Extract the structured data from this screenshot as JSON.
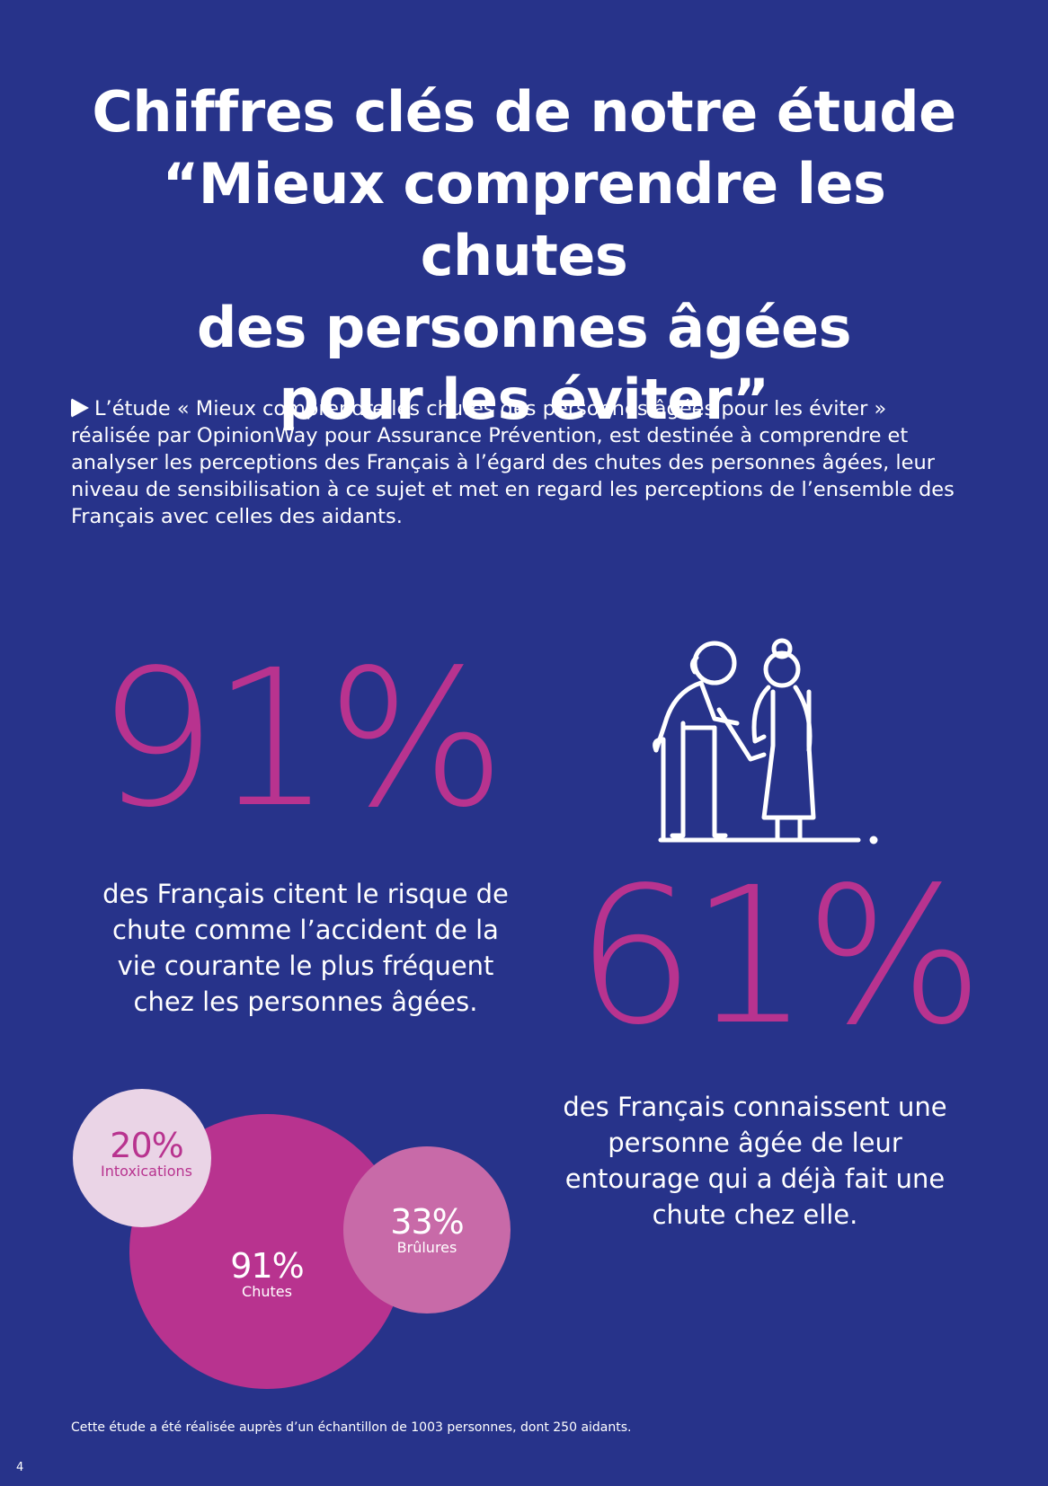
{
  "title": {
    "line1": "Chiffres clés de notre étude",
    "line2": "“Mieux comprendre les chutes",
    "line3": "des personnes âgées",
    "line4": "pour les éviter”"
  },
  "intro": {
    "icon": "play-arrow-icon",
    "text": "L’étude « Mieux comprendre les chutes des personnes âgées pour les éviter » réalisée par OpinionWay pour Assurance Prévention, est destinée à comprendre et analyser les perceptions des Français à l’égard des chutes des personnes âgées, leur niveau de sensibilisation à ce sujet et met en regard les perceptions de l’ensemble des Français avec celles des aidants."
  },
  "stat1": {
    "value": "91%",
    "text": "des Français citent le risque de chute comme l’accident de la vie courante le plus fréquent chez les personnes âgées."
  },
  "illustration": {
    "icon": "elderly-couple-icon"
  },
  "stat2": {
    "value": "61%",
    "text": "des Français connaissent une personne âgée de leur entourage qui a déjà fait une chute chez elle."
  },
  "bubbles": {
    "chutes": {
      "value": "91%",
      "label": "Chutes",
      "color": "#b8338f"
    },
    "intoxications": {
      "value": "20%",
      "label": "Intoxications",
      "color": "#ead4e6"
    },
    "brulures": {
      "value": "33%",
      "label": "Brûlures",
      "color": "#c86aa8"
    }
  },
  "footnote": "Cette étude a été réalisée auprès d’un échantillon de 1003 personnes, dont 250 aidants.",
  "page_number": "4",
  "colors": {
    "background": "#27338a",
    "accent": "#b8338f",
    "text": "#ffffff"
  }
}
